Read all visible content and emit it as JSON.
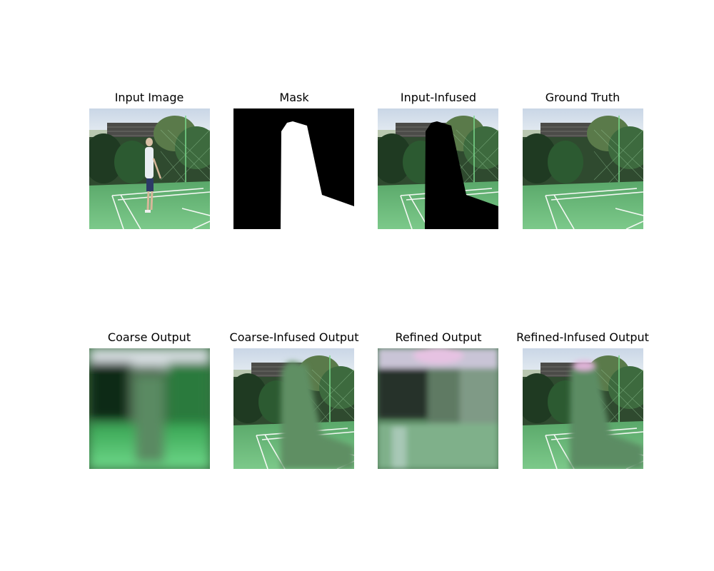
{
  "figure": {
    "panels": [
      {
        "title": "Input Image"
      },
      {
        "title": "Mask"
      },
      {
        "title": "Input-Infused"
      },
      {
        "title": "Ground Truth"
      },
      {
        "title": "Coarse Output"
      },
      {
        "title": "Coarse-Infused Output"
      },
      {
        "title": "Refined Output"
      },
      {
        "title": "Refined-Infused Output"
      }
    ]
  }
}
